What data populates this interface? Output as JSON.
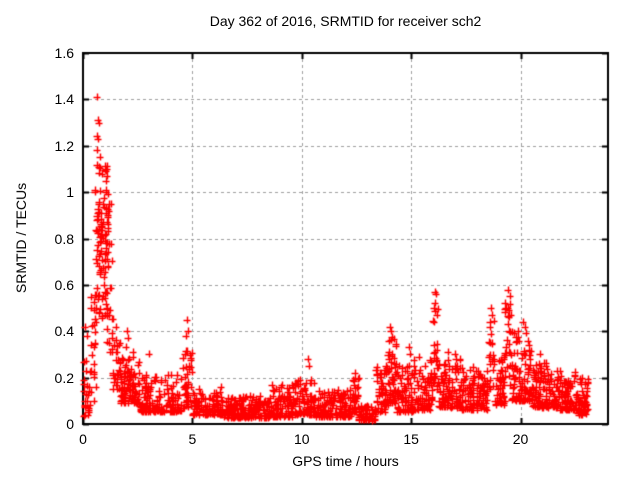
{
  "chart_data": {
    "type": "scatter",
    "title": "Day 362 of 2016, SRMTID for receiver sch2",
    "xlabel": "GPS time / hours",
    "ylabel": "SRMTID / TECUs",
    "xlim": [
      0,
      24
    ],
    "ylim": [
      0,
      1.6
    ],
    "xtick_labels": [
      "0",
      "5",
      "10",
      "15",
      "20"
    ],
    "ytick_labels": [
      "0",
      "0.2",
      "0.4",
      "0.6",
      "0.8",
      "1",
      "1.2",
      "1.4",
      "1.6"
    ],
    "grid": true,
    "grid_style": "dashed",
    "legend_position": "none",
    "marker": {
      "shape": "plus",
      "color": "#ff0000",
      "size": 7
    },
    "grid_color": "#a0a0a0",
    "axis_color": "#000000",
    "background_color": "#ffffff",
    "data_start_hour": 0.0,
    "data_end_hour": 23.1,
    "max_value": 1.42,
    "envelope_segments": [
      [
        0.02,
        0.35,
        28,
        0.03,
        0.3,
        1.6
      ],
      [
        0.3,
        0.6,
        22,
        0.1,
        0.62,
        1.2
      ],
      [
        0.55,
        1.15,
        95,
        0.45,
        1.12,
        1.0
      ],
      [
        1.0,
        1.35,
        32,
        0.3,
        0.97,
        1.3
      ],
      [
        1.3,
        1.75,
        32,
        0.15,
        0.5,
        1.5
      ],
      [
        1.7,
        2.6,
        95,
        0.09,
        0.3,
        2.0
      ],
      [
        2.6,
        4.5,
        165,
        0.05,
        0.22,
        2.2
      ],
      [
        4.55,
        5.0,
        42,
        0.07,
        0.36,
        1.6
      ],
      [
        5.0,
        6.4,
        115,
        0.04,
        0.16,
        2.0
      ],
      [
        6.4,
        8.6,
        195,
        0.025,
        0.12,
        1.8
      ],
      [
        8.6,
        9.6,
        90,
        0.03,
        0.17,
        2.0
      ],
      [
        9.6,
        10.6,
        90,
        0.04,
        0.19,
        2.0
      ],
      [
        10.6,
        12.3,
        150,
        0.03,
        0.15,
        2.0
      ],
      [
        12.3,
        12.65,
        35,
        0.05,
        0.2,
        1.8
      ],
      [
        12.6,
        13.4,
        60,
        0.015,
        0.08,
        1.5
      ],
      [
        13.4,
        13.9,
        50,
        0.05,
        0.26,
        1.6
      ],
      [
        13.9,
        14.35,
        55,
        0.08,
        0.38,
        1.4
      ],
      [
        14.35,
        15.1,
        70,
        0.05,
        0.26,
        1.8
      ],
      [
        15.1,
        16.0,
        80,
        0.06,
        0.29,
        1.8
      ],
      [
        16.0,
        16.25,
        26,
        0.15,
        0.5,
        1.0
      ],
      [
        16.25,
        17.3,
        105,
        0.07,
        0.28,
        1.8
      ],
      [
        17.3,
        18.5,
        115,
        0.06,
        0.25,
        1.8
      ],
      [
        18.55,
        18.8,
        20,
        0.15,
        0.45,
        1.0
      ],
      [
        18.8,
        19.3,
        50,
        0.08,
        0.3,
        1.6
      ],
      [
        19.3,
        19.6,
        26,
        0.15,
        0.53,
        1.0
      ],
      [
        19.6,
        20.5,
        95,
        0.1,
        0.4,
        1.9
      ],
      [
        20.5,
        21.6,
        115,
        0.07,
        0.27,
        1.9
      ],
      [
        21.6,
        22.6,
        105,
        0.06,
        0.23,
        1.9
      ],
      [
        22.6,
        23.1,
        55,
        0.04,
        0.2,
        1.8
      ]
    ],
    "notable_points": [
      [
        0.1,
        0.42
      ],
      [
        0.16,
        0.38
      ],
      [
        0.62,
        1.41
      ],
      [
        0.68,
        1.31
      ],
      [
        0.72,
        1.3
      ],
      [
        0.66,
        1.24
      ],
      [
        0.7,
        1.23
      ],
      [
        0.64,
        1.18
      ],
      [
        0.76,
        1.15
      ],
      [
        1.05,
        1.0
      ],
      [
        1.12,
        0.99
      ],
      [
        2.0,
        0.4
      ],
      [
        2.06,
        0.37
      ],
      [
        1.96,
        0.33
      ],
      [
        2.3,
        0.31
      ],
      [
        3.0,
        0.3
      ],
      [
        4.75,
        0.45
      ],
      [
        4.8,
        0.4
      ],
      [
        4.72,
        0.38
      ],
      [
        10.3,
        0.28
      ],
      [
        10.35,
        0.25
      ],
      [
        12.45,
        0.22
      ],
      [
        14.05,
        0.42
      ],
      [
        14.1,
        0.4
      ],
      [
        14.0,
        0.36
      ],
      [
        14.9,
        0.33
      ],
      [
        14.95,
        0.3
      ],
      [
        16.1,
        0.57
      ],
      [
        16.13,
        0.56
      ],
      [
        16.08,
        0.52
      ],
      [
        16.16,
        0.47
      ],
      [
        16.05,
        0.44
      ],
      [
        16.7,
        0.31
      ],
      [
        17.0,
        0.3
      ],
      [
        18.65,
        0.5
      ],
      [
        18.7,
        0.47
      ],
      [
        18.62,
        0.42
      ],
      [
        19.45,
        0.58
      ],
      [
        19.5,
        0.55
      ],
      [
        19.42,
        0.5
      ],
      [
        19.47,
        0.46
      ],
      [
        20.1,
        0.44
      ],
      [
        20.2,
        0.42
      ],
      [
        19.9,
        0.4
      ],
      [
        20.9,
        0.3
      ],
      [
        22.8,
        0.2
      ]
    ]
  }
}
